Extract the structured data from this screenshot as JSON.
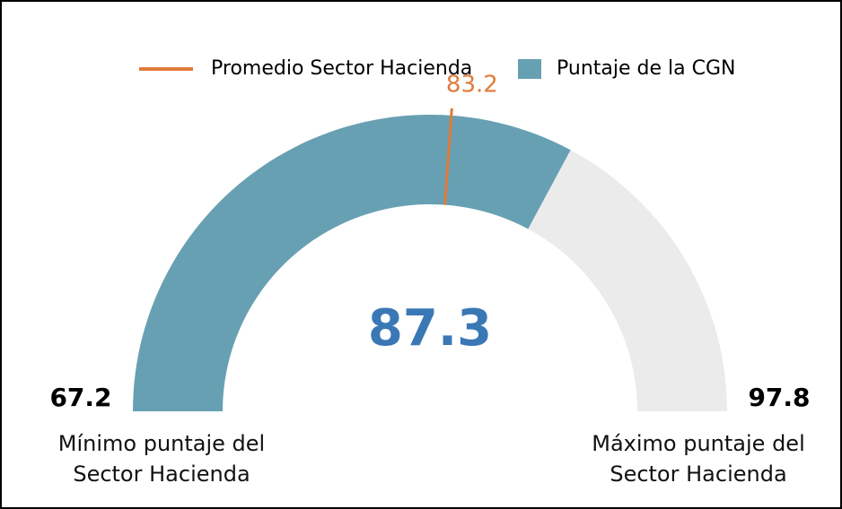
{
  "chart_data": {
    "type": "gauge",
    "legend": [
      {
        "name": "Promedio Sector Hacienda",
        "color": "#e07b39"
      },
      {
        "name": "Puntaje de la CGN",
        "color": "#67a0b2"
      }
    ],
    "value": 87.3,
    "value_color": "#3a78b5",
    "average": 83.2,
    "average_color": "#e07b39",
    "min": 67.2,
    "max": 97.8,
    "track_color": "#ebebeb",
    "min_label": "Mínimo puntaje del Sector Hacienda",
    "max_label": "Máximo puntaje del Sector Hacienda"
  }
}
